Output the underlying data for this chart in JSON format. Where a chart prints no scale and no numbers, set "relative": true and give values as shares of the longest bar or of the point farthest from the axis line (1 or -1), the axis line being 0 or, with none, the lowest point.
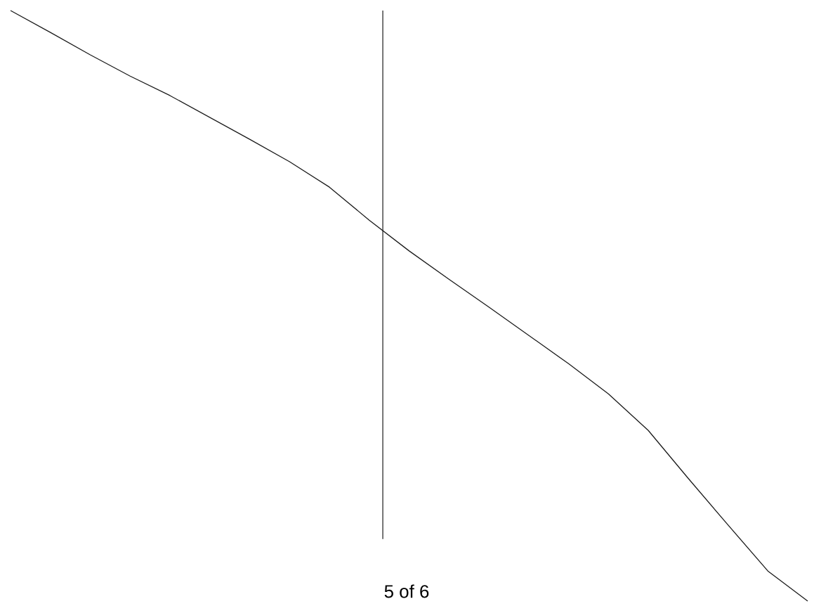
{
  "chart_data": {
    "type": "line",
    "relative": true,
    "color": "#1a1a1a",
    "categories": [
      null,
      null,
      null,
      null,
      null,
      null,
      null,
      null,
      null,
      null,
      null,
      null,
      null,
      null,
      null,
      null,
      null,
      null,
      null,
      null,
      null
    ],
    "values": [
      1.0,
      0.963,
      0.925,
      0.889,
      0.856,
      0.819,
      0.782,
      0.744,
      0.701,
      0.645,
      0.593,
      0.545,
      0.498,
      0.45,
      0.402,
      0.351,
      0.289,
      0.208,
      0.129,
      0.051,
      0.0
    ],
    "annotations": [
      "5 of 6"
    ]
  }
}
